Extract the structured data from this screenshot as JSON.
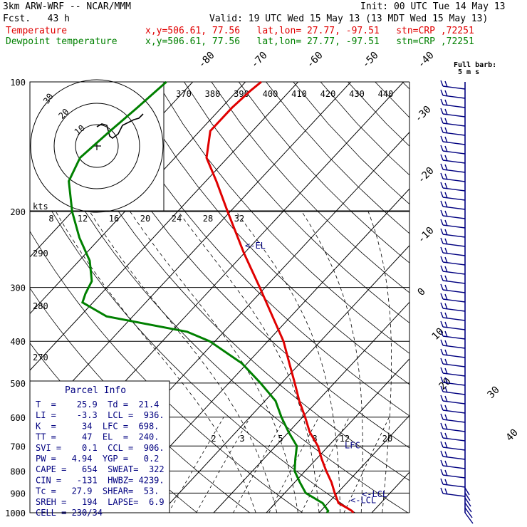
{
  "header": {
    "model": "3km ARW-WRF -- NCAR/MMM",
    "init": "Init: 00 UTC Tue 14 May 13",
    "fcst": "Fcst.   43 h",
    "valid": "Valid: 19 UTC Wed 15 May 13 (13 MDT Wed 15 May 13)",
    "temp_label": "Temperature",
    "dew_label": "Dewpoint temperature",
    "loc_info": "x,y=506.61, 77.56   lat,lon= 27.77, -97.51   stn=CRP ,72251"
  },
  "chart_data": {
    "type": "line",
    "pressure_levels": [
      "100",
      "200",
      "300",
      "400",
      "500",
      "600",
      "700",
      "800",
      "900",
      "1000"
    ],
    "skewed_temp_labels": [
      "-80",
      "-70",
      "-60",
      "-50",
      "-40",
      "-30",
      "-20",
      "-10",
      "0",
      "10",
      "20",
      "30",
      "40"
    ],
    "theta_labels": [
      "370",
      "380",
      "390",
      "400",
      "410",
      "420",
      "430",
      "440"
    ],
    "theta_left_labels": [
      "290",
      "280",
      "270"
    ],
    "mixing_ratio_labels": [
      "2",
      "3",
      "5",
      "8",
      "12",
      "20"
    ],
    "hodograph": {
      "ring_labels": [
        "30",
        "20",
        "10"
      ],
      "speed_labels": [
        "8",
        "12",
        "16",
        "20",
        "24",
        "28",
        "32"
      ],
      "unit": "kts"
    },
    "barb_title": "Full barb:",
    "barb_unit": "5 m s",
    "series": [
      {
        "name": "Temperature",
        "color": "#e00000",
        "points": [
          [
            1000,
            26.5
          ],
          [
            990,
            25.9
          ],
          [
            975,
            24.5
          ],
          [
            950,
            22.0
          ],
          [
            900,
            19.5
          ],
          [
            850,
            17.0
          ],
          [
            800,
            14.0
          ],
          [
            750,
            11.0
          ],
          [
            700,
            8.0
          ],
          [
            650,
            4.0
          ],
          [
            600,
            0.5
          ],
          [
            550,
            -3.5
          ],
          [
            500,
            -7.5
          ],
          [
            450,
            -12.0
          ],
          [
            400,
            -17.0
          ],
          [
            350,
            -23.5
          ],
          [
            300,
            -31.0
          ],
          [
            250,
            -40.0
          ],
          [
            200,
            -50.5
          ],
          [
            170,
            -58.0
          ],
          [
            150,
            -64.0
          ],
          [
            130,
            -68.0
          ],
          [
            115,
            -68.0
          ],
          [
            105,
            -67.5
          ],
          [
            100,
            -67.0
          ]
        ]
      },
      {
        "name": "Dewpoint temperature",
        "color": "#008000",
        "points": [
          [
            1000,
            21.5
          ],
          [
            990,
            21.4
          ],
          [
            950,
            19.0
          ],
          [
            900,
            14.0
          ],
          [
            850,
            11.0
          ],
          [
            800,
            8.0
          ],
          [
            750,
            6.0
          ],
          [
            700,
            4.0
          ],
          [
            650,
            0.0
          ],
          [
            600,
            -4.0
          ],
          [
            550,
            -8.0
          ],
          [
            500,
            -14.0
          ],
          [
            450,
            -21.0
          ],
          [
            400,
            -31.0
          ],
          [
            380,
            -37.0
          ],
          [
            350,
            -55.0
          ],
          [
            325,
            -62.0
          ],
          [
            310,
            -63.0
          ],
          [
            290,
            -64.0
          ],
          [
            260,
            -68.0
          ],
          [
            230,
            -74.0
          ],
          [
            200,
            -80.0
          ],
          [
            170,
            -86.0
          ],
          [
            150,
            -88.0
          ],
          [
            130,
            -87.0
          ],
          [
            115,
            -86.0
          ],
          [
            100,
            -85.0
          ]
        ]
      }
    ],
    "markers": [
      {
        "label": "<-EL",
        "p": 240
      },
      {
        "label": "LFC",
        "p": 698
      },
      {
        "label": "<-LCL",
        "p": 906
      },
      {
        "label": "<-LCL",
        "p": 936
      }
    ],
    "indices": {
      "title": "Parcel Info",
      "rows": [
        "T  =    25.9  Td =  21.4",
        "LI =    -3.3  LCL =  936.",
        "K  =     34  LFC =  698.",
        "TT =     47  EL  =  240.",
        "SVI =    0.1  CCL =  906.",
        "PW =   4.94  YGP =   0.2",
        "CAPE =   654  SWEAT=  322",
        "CIN =   -131  HWBZ= 4239.",
        "Tc =   27.9  SHEAR=  53.",
        "SREH =   194  LAPSE=  6.9",
        "CELL = 230/34"
      ]
    }
  }
}
